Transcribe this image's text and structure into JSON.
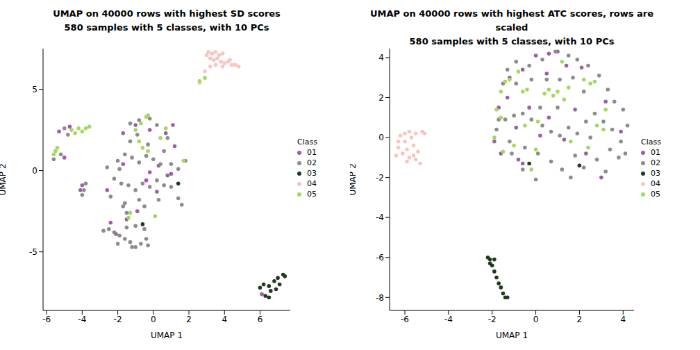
{
  "chart_data": [
    {
      "type": "scatter",
      "title": "UMAP on 40000 rows with highest SD scores",
      "subtitle": "580 samples with 5 classes, with 10 PCs",
      "x_label": "UMAP 1",
      "y_label": "UMAP 2",
      "legend": "right",
      "legend_title": "Class",
      "xlim": [
        -6.2,
        7.7
      ],
      "ylim": [
        -8.6,
        7.5
      ],
      "xticks": [
        -6,
        -4,
        -2,
        0,
        2,
        4,
        6
      ],
      "yticks": [
        -5,
        0,
        5
      ],
      "marker": "circle",
      "series": [
        {
          "name": "01",
          "color": "#9b5fa5",
          "x": [
            6.1,
            -4.7,
            -5.3,
            -5.0,
            -4.0,
            -4.1,
            -1.0,
            -0.2,
            0.7,
            0.3,
            -0.2,
            0.8,
            1.0,
            -1.7,
            -2.6,
            -0.9,
            1.2,
            -2.1,
            -1.5,
            -2.4,
            0.2,
            1.1,
            -1.7,
            -0.4
          ],
          "y": [
            -7.6,
            2.7,
            2.4,
            0.8,
            -0.9,
            -1.2,
            2.8,
            2.5,
            2.3,
            0.3,
            -0.1,
            -0.3,
            -0.2,
            0.4,
            -1.2,
            -2.5,
            1.5,
            -3.9,
            -3.0,
            -3.2,
            -1.3,
            2.8,
            2.3,
            -0.6
          ]
        },
        {
          "name": "02",
          "color": "#8c8c8c",
          "x": [
            -2.8,
            -2.5,
            -2.2,
            -1.9,
            -1.6,
            -1.3,
            -1.0,
            -0.7,
            -0.4,
            -1.5,
            -1.0,
            -0.5,
            -2.0,
            -1.2,
            -0.3,
            -2.0,
            -1.6,
            -1.2,
            -0.8,
            -0.4,
            0.0,
            0.4,
            -1.8,
            -1.4,
            -1.0,
            -0.6,
            -0.2,
            0.2,
            0.6,
            1.0,
            1.4,
            1.6,
            -2.2,
            -2.4,
            -1.6,
            -0.8,
            -1.3,
            -0.9,
            -1.3,
            -0.8,
            -0.2,
            0.2,
            0.6,
            1.0,
            1.4,
            -3.9,
            -3.8,
            -4.0,
            -5.0,
            -4.8,
            -5.6,
            -5.2,
            -1.5,
            -1.7,
            -0.5,
            0.3,
            -2.6,
            1.8,
            -0.3,
            0.8,
            -1.9
          ],
          "y": [
            -3.7,
            -3.6,
            -3.8,
            -4.0,
            -4.2,
            -4.4,
            -4.7,
            -4.5,
            -4.2,
            -3.5,
            -3.4,
            -3.6,
            -4.5,
            -4.7,
            -4.6,
            0.6,
            1.0,
            0.8,
            0.5,
            0.9,
            0.7,
            0.4,
            -0.8,
            -0.9,
            -1.2,
            -0.8,
            -1.0,
            -0.6,
            -0.9,
            -1.0,
            -1.7,
            -2.1,
            -0.5,
            -1.6,
            -2.0,
            -1.8,
            1.8,
            2.2,
            2.9,
            3.1,
            3.2,
            2.8,
            1.2,
            0.4,
            0.1,
            -1.2,
            -0.8,
            -1.5,
            2.6,
            2.2,
            0.7,
            1.0,
            -2.6,
            -2.2,
            -2.2,
            -1.8,
            0.2,
            0.6,
            1.6,
            2.0,
            0.1
          ]
        },
        {
          "name": "03",
          "color": "#1f3a1f",
          "x": [
            6.2,
            6.5,
            6.8,
            7.0,
            7.3,
            7.1,
            6.6,
            6.3,
            6.5,
            6.9,
            6.0,
            7.4,
            1.4,
            -0.6
          ],
          "y": [
            -7.0,
            -7.1,
            -6.8,
            -6.6,
            -6.4,
            -7.0,
            -7.4,
            -7.7,
            -7.8,
            -7.3,
            -7.2,
            -6.5,
            -0.8,
            -3.3
          ]
        },
        {
          "name": "04",
          "color": "#f8c6c0",
          "x": [
            3.1,
            3.3,
            3.5,
            3.7,
            3.9,
            3.2,
            3.4,
            3.6,
            3.8,
            4.0,
            4.2,
            4.4,
            4.6,
            4.8,
            3.5,
            3.9,
            3.2,
            2.9,
            2.6,
            4.3,
            3.0
          ],
          "y": [
            7.3,
            7.2,
            7.3,
            7.1,
            7.2,
            6.9,
            6.8,
            6.9,
            6.7,
            6.6,
            6.7,
            6.5,
            6.5,
            6.4,
            6.5,
            6.4,
            6.4,
            6.1,
            5.4,
            6.8,
            7.1
          ]
        },
        {
          "name": "05",
          "color": "#a6d75f",
          "x": [
            -4.4,
            -4.0,
            -3.8,
            -3.6,
            -4.2,
            -4.6,
            -5.5,
            -5.6,
            -5.4,
            -0.3,
            -0.4,
            -0.7,
            -1.0,
            -0.8,
            -0.6,
            0.4,
            1.7,
            -1.3,
            -1.4,
            0.1,
            -0.3,
            0.7,
            2.6,
            2.9
          ],
          "y": [
            2.3,
            2.4,
            2.6,
            2.7,
            2.6,
            2.5,
            1.2,
            1.0,
            1.4,
            3.4,
            3.3,
            2.9,
            2.5,
            1.8,
            1.4,
            2.0,
            0.6,
            -2.6,
            -2.9,
            -2.8,
            1.2,
            2.6,
            5.5,
            5.7
          ]
        }
      ]
    },
    {
      "type": "scatter",
      "title": "UMAP on 40000 rows with highest ATC scores, rows are scaled",
      "subtitle": "580 samples with 5 classes, with 10 PCs",
      "x_label": "UMAP 1",
      "y_label": "UMAP 2",
      "legend": "right",
      "legend_title": "Class",
      "xlim": [
        -6.7,
        4.5
      ],
      "ylim": [
        -8.65,
        4.45
      ],
      "xticks": [
        -6,
        -4,
        -2,
        0,
        2,
        4
      ],
      "yticks": [
        -8,
        -6,
        -4,
        -2,
        0,
        2,
        4
      ],
      "marker": "circle",
      "series": [
        {
          "name": "01",
          "color": "#9b5fa5",
          "x": [
            -1.2,
            -0.6,
            0.0,
            0.6,
            1.0,
            1.4,
            -1.7,
            -1.9,
            -1.6,
            -0.8,
            -0.6,
            0.2,
            0.6,
            1.3,
            2.3,
            3.0,
            3.2,
            -0.9,
            -1.3,
            0.5,
            1.8,
            -0.3,
            2.1,
            3.9
          ],
          "y": [
            3.0,
            3.4,
            4.1,
            4.2,
            4.3,
            3.6,
            1.5,
            -0.2,
            -0.8,
            -1.1,
            -1.3,
            0.1,
            1.0,
            -0.1,
            -0.8,
            -2.0,
            1.8,
            0.5,
            2.0,
            3.2,
            1.4,
            1.5,
            3.5,
            0.3
          ]
        },
        {
          "name": "02",
          "color": "#8c8c8c",
          "x": [
            -1.8,
            -1.4,
            -1.0,
            -0.6,
            -0.2,
            0.3,
            0.7,
            1.1,
            1.5,
            1.9,
            2.3,
            2.7,
            3.1,
            3.5,
            3.9,
            4.2,
            4.0,
            3.6,
            3.3,
            2.9,
            2.4,
            1.9,
            1.5,
            0.9,
            0.3,
            -0.3,
            -0.9,
            -1.3,
            -1.5,
            -0.9,
            -0.2,
            0.5,
            1.1,
            1.7,
            2.2,
            1.0,
            0.2,
            -0.5,
            0.1,
            0.7,
            1.2,
            1.6,
            2.2,
            2.8,
            3.4,
            3.8,
            3.2,
            0.0,
            -0.6,
            -1.1,
            -1.7,
            1.8,
            2.5,
            4.1,
            -1.2
          ],
          "y": [
            0.4,
            0.9,
            1.1,
            1.2,
            0.9,
            0.6,
            0.3,
            0.1,
            0.5,
            0.2,
            0.8,
            1.2,
            0.8,
            0.4,
            -0.2,
            0.6,
            1.4,
            1.8,
            2.4,
            3.1,
            3.6,
            3.9,
            4.1,
            4.3,
            3.9,
            3.6,
            3.8,
            3.4,
            2.7,
            2.7,
            2.9,
            2.9,
            2.9,
            3.0,
            2.3,
            1.5,
            1.5,
            -0.5,
            -0.8,
            -1.2,
            -1.6,
            -2.0,
            -1.5,
            -1.1,
            -0.6,
            -1.0,
            -1.7,
            -2.1,
            -1.6,
            -0.8,
            0.9,
            -0.9,
            0.0,
            -0.8,
            -0.2
          ]
        },
        {
          "name": "03",
          "color": "#1f3a1f",
          "x": [
            -2.2,
            -2.1,
            -1.9,
            -2.0,
            -1.9,
            -1.8,
            -1.7,
            -1.6,
            -1.5,
            -1.4,
            -1.3,
            -2.1,
            -0.3,
            2.0
          ],
          "y": [
            -6.0,
            -6.1,
            -6.1,
            -6.4,
            -6.7,
            -7.0,
            -7.3,
            -7.5,
            -7.8,
            -8.0,
            -8.0,
            -6.3,
            -1.3,
            -1.4
          ]
        },
        {
          "name": "04",
          "color": "#f8c6c0",
          "x": [
            -6.4,
            -6.3,
            -6.2,
            -6.0,
            -5.9,
            -5.8,
            -5.7,
            -5.6,
            -5.5,
            -5.4,
            -5.3,
            -5.2,
            -5.1,
            -6.1,
            -5.9,
            -5.6,
            -6.3,
            -5.8,
            -5.5,
            -6.0
          ],
          "y": [
            -0.9,
            -0.5,
            0.1,
            -0.2,
            -0.6,
            -1.0,
            0.0,
            -0.4,
            0.2,
            -0.7,
            -1.3,
            0.3,
            0.2,
            -0.8,
            -1.2,
            -0.9,
            -0.2,
            0.3,
            -1.1,
            0.2
          ]
        },
        {
          "name": "05",
          "color": "#a6d75f",
          "x": [
            -1.6,
            -1.4,
            -1.2,
            -0.6,
            -0.8,
            -0.4,
            0.4,
            0.6,
            0.8,
            1.0,
            1.3,
            1.5,
            2.2,
            2.5,
            1.2,
            -1.8,
            -1.6,
            -1.9,
            -1.5,
            -1.0,
            -0.5,
            0.1,
            1.6,
            2.8,
            3.2,
            3.1,
            2.4,
            -0.2,
            0.0,
            2.7
          ],
          "y": [
            2.3,
            2.8,
            2.9,
            2.3,
            3.3,
            2.4,
            2.2,
            2.4,
            2.1,
            2.3,
            1.9,
            2.5,
            2.9,
            2.7,
            3.8,
            1.4,
            1.0,
            0.0,
            -0.7,
            -0.4,
            0.6,
            0.8,
            -0.2,
            0.6,
            1.4,
            0.4,
            -0.5,
            -1.6,
            -0.6,
            2.8
          ]
        }
      ]
    }
  ]
}
